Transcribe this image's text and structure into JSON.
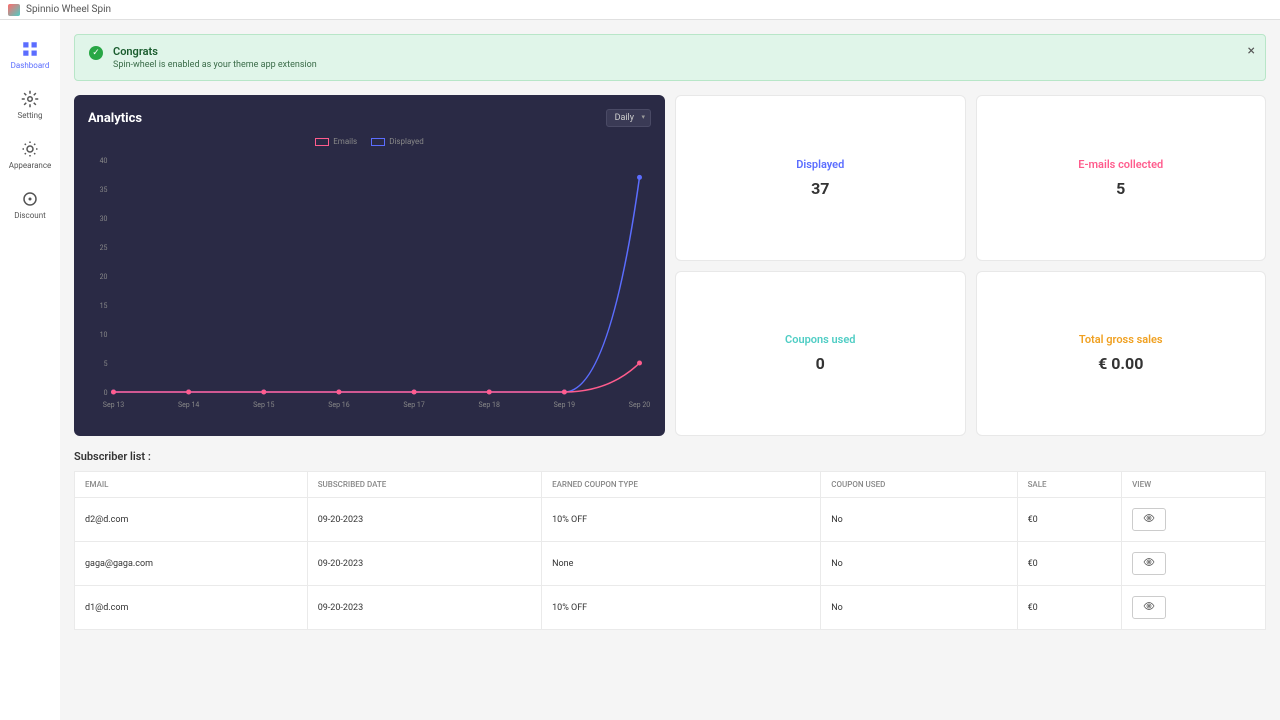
{
  "topbar": {
    "title": "Spinnio Wheel Spin"
  },
  "sidebar": {
    "items": [
      {
        "label": "Dashboard",
        "icon": "grid",
        "active": true
      },
      {
        "label": "Setting",
        "icon": "gear",
        "active": false
      },
      {
        "label": "Appearance",
        "icon": "sun",
        "active": false
      },
      {
        "label": "Discount",
        "icon": "tag",
        "active": false
      }
    ]
  },
  "banner": {
    "title": "Congrats",
    "subtitle": "Spin-wheel is enabled as your theme app extension"
  },
  "analytics": {
    "title": "Analytics",
    "period": "Daily",
    "legend": [
      {
        "label": "Emails",
        "color": "#ff5c8d"
      },
      {
        "label": "Displayed",
        "color": "#5b6dff"
      }
    ],
    "y_axis": {
      "min": 0,
      "max": 40,
      "ticks": [
        0,
        5,
        10,
        15,
        20,
        25,
        30,
        35,
        40
      ]
    },
    "x_labels": [
      "Sep 13",
      "Sep 14",
      "Sep 15",
      "Sep 16",
      "Sep 17",
      "Sep 18",
      "Sep 19",
      "Sep 20"
    ],
    "series": {
      "emails": [
        0,
        0,
        0,
        0,
        0,
        0,
        0,
        5
      ],
      "displayed": [
        0,
        0,
        0,
        0,
        0,
        0,
        0,
        37
      ]
    },
    "bg_color": "#2a2a45",
    "axis_color": "#666680",
    "label_color": "#888"
  },
  "stats": [
    {
      "label": "Displayed",
      "value": "37",
      "color": "#5b6dff"
    },
    {
      "label": "E-mails collected",
      "value": "5",
      "color": "#ff5c8d"
    },
    {
      "label": "Coupons used",
      "value": "0",
      "color": "#4ecdc4"
    },
    {
      "label": "Total gross sales",
      "value": "€ 0.00",
      "color": "#f0a020"
    }
  ],
  "subscriber_section": {
    "title": "Subscriber list :",
    "columns": [
      "EMAIL",
      "SUBSCRIBED DATE",
      "EARNED COUPON TYPE",
      "COUPON USED",
      "Sale",
      "VIEW"
    ],
    "rows": [
      {
        "email": "d2@d.com",
        "date": "09-20-2023",
        "coupon": "10% OFF",
        "used": "No",
        "sale": "€0"
      },
      {
        "email": "gaga@gaga.com",
        "date": "09-20-2023",
        "coupon": "None",
        "used": "No",
        "sale": "€0"
      },
      {
        "email": "d1@d.com",
        "date": "09-20-2023",
        "coupon": "10% OFF",
        "used": "No",
        "sale": "€0"
      }
    ]
  }
}
